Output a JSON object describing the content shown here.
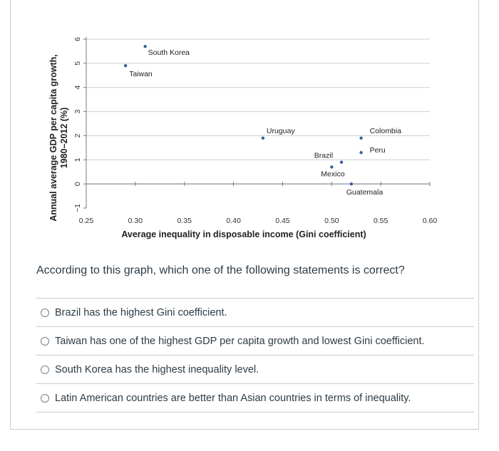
{
  "chart_data": {
    "type": "scatter",
    "xlabel": "Average inequality in disposable income (Gini coefficient)",
    "ylabel": "Annual average GDP per capita growth, 1980–2012 (%)",
    "xlim": [
      0.25,
      0.6
    ],
    "ylim": [
      -1,
      6
    ],
    "x_ticks": [
      "0.25",
      "0.30",
      "0.35",
      "0.40",
      "0.45",
      "0.50",
      "0.55",
      "0.60"
    ],
    "y_ticks": [
      "−1",
      "0",
      "1",
      "2",
      "3",
      "4",
      "5",
      "6"
    ],
    "grid": true,
    "points": [
      {
        "label": "South Korea",
        "x": 0.31,
        "y": 5.7
      },
      {
        "label": "Taiwan",
        "x": 0.29,
        "y": 4.9
      },
      {
        "label": "Uruguay",
        "x": 0.43,
        "y": 1.9
      },
      {
        "label": "Colombia",
        "x": 0.53,
        "y": 1.9
      },
      {
        "label": "Peru",
        "x": 0.53,
        "y": 1.3
      },
      {
        "label": "Brazil",
        "x": 0.51,
        "y": 0.9
      },
      {
        "label": "Mexico",
        "x": 0.5,
        "y": 0.7
      },
      {
        "label": "Guatemala",
        "x": 0.52,
        "y": 0.0
      }
    ],
    "colors": {
      "point": "#3a5fa0",
      "grid": "#c9cfd6",
      "axis": "#6f7b87"
    }
  },
  "question": {
    "text": "According to this graph, which one of the following statements is correct?"
  },
  "answers": [
    {
      "label": "Brazil has the highest Gini coefficient."
    },
    {
      "label": "Taiwan has one of the highest GDP per capita growth and lowest Gini coefficient."
    },
    {
      "label": "South Korea has the highest inequality level."
    },
    {
      "label": "Latin American countries are better than Asian countries in terms of inequality."
    }
  ]
}
